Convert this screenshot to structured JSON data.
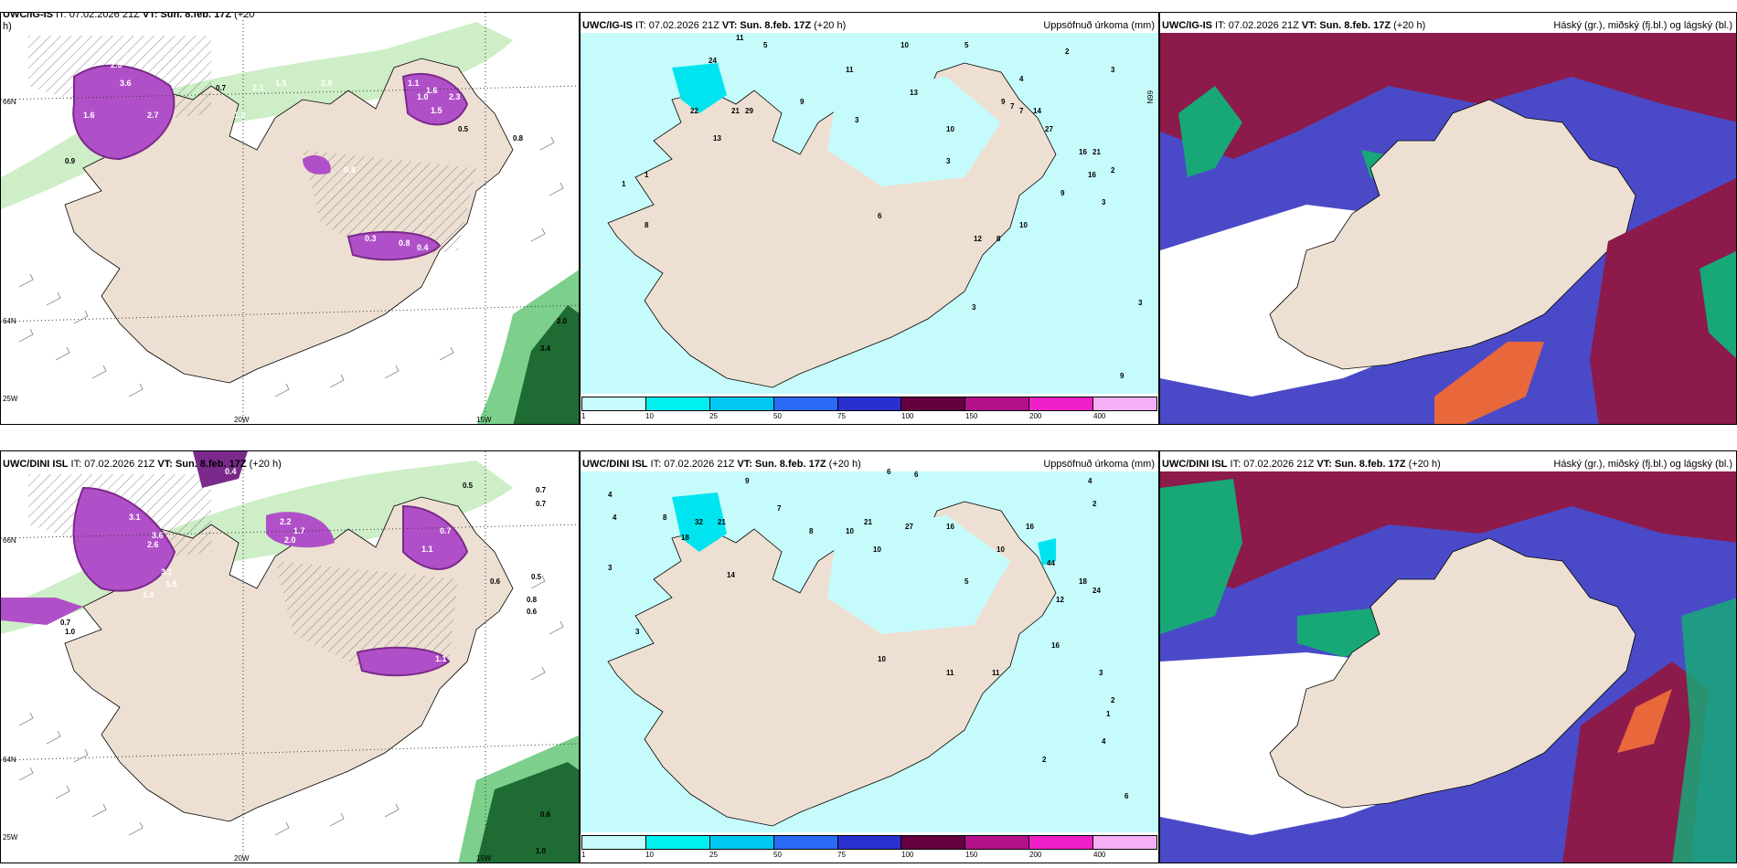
{
  "top": {
    "left": {
      "title_bold": "UWC/IG-IS",
      "title_rest": " IT: 07.02.2026 21Z ",
      "vt_bold": "VT: Sun. 8.feb. 17Z",
      "lead": " (+20",
      "lead_cont": "h)",
      "lat_labels": [
        "66N",
        "64N",
        "25W"
      ],
      "lon_labels": [
        "20W",
        "15W"
      ],
      "precip_labels": [
        "2.6",
        "3.6",
        "1.6",
        "2.7",
        "1.2",
        "2.6",
        "1.5",
        "2.1",
        "0.7",
        "1.1",
        "1.6",
        "1.0",
        "2.3",
        "1.5",
        "0.4",
        "0.8",
        "0.3",
        "0.8",
        "0.4",
        "2.0",
        "3.4",
        "0.9",
        "0.5"
      ]
    },
    "middle": {
      "title_bold": "UWC/IG-IS",
      "title_rest": " IT: 07.02.2026 21Z ",
      "vt_bold": "VT: Sun. 8.feb. 17Z",
      "lead": " (+20 h)",
      "right_label": "Uppsöfnuð úrkoma (mm)",
      "lat_labels": [
        "66N"
      ],
      "values": [
        "11",
        "5",
        "10",
        "5",
        "2",
        "3",
        "24",
        "22",
        "21",
        "29",
        "13",
        "11",
        "13",
        "9",
        "10",
        "3",
        "4",
        "9",
        "7",
        "7",
        "14",
        "27",
        "16",
        "21",
        "16",
        "3",
        "6",
        "12",
        "10",
        "8",
        "9",
        "3",
        "2",
        "1",
        "1",
        "8",
        "3",
        "3",
        "9"
      ],
      "colorbar": {
        "colors": [
          "#c6fbfb",
          "#00f0f0",
          "#00c8f0",
          "#2a6af5",
          "#2a30d0",
          "#640040",
          "#b4108c",
          "#f020c8",
          "#f5b0f5"
        ],
        "ticks": [
          "1",
          "10",
          "25",
          "50",
          "75",
          "100",
          "150",
          "200",
          "400"
        ]
      }
    },
    "right": {
      "title_bold": "UWC/IG-IS",
      "title_rest": " IT: 07.02.2026 21Z ",
      "vt_bold": "VT: Sun. 8.feb. 17Z",
      "lead": " (+20 h)",
      "right_label": "Háský (gr.), miðský (fj.bl.) og lágský (bl.)"
    }
  },
  "bottom": {
    "left": {
      "title_bold": "UWC/DINI ISL",
      "title_rest": " IT: 07.02.2026 21Z ",
      "vt_bold": "VT: Sun. 8.feb. 17Z",
      "lead": " (+20 h)",
      "lat_labels": [
        "66N",
        "64N",
        "25W"
      ],
      "lon_labels": [
        "20W",
        "15W"
      ],
      "precip_labels": [
        "0.4",
        "0.4",
        "3.1",
        "3.6",
        "2.6",
        "3.1",
        "1.8",
        "1.0",
        "0.6",
        "2.2",
        "1.7",
        "2.0",
        "1.1",
        "0.7",
        "0.5",
        "0.7",
        "0.7",
        "0.8",
        "0.6",
        "0.6",
        "1.1",
        "0.5",
        "1.0",
        "0.7",
        "0.6",
        "1.0"
      ]
    },
    "middle": {
      "title_bold": "UWC/DINI ISL",
      "title_rest": " IT: 07.02.2026 21Z ",
      "vt_bold": "VT: Sun. 8.feb. 17Z",
      "lead": " (+20 h)",
      "right_label": "Uppsöfnuð úrkoma (mm)",
      "lat_labels": [
        "66N"
      ],
      "values": [
        "9",
        "6",
        "6",
        "4",
        "2",
        "4",
        "7",
        "8",
        "32",
        "21",
        "18",
        "14",
        "8",
        "10",
        "10",
        "21",
        "27",
        "16",
        "16",
        "10",
        "44",
        "18",
        "24",
        "12",
        "16",
        "5",
        "10",
        "11",
        "11",
        "3",
        "2",
        "4",
        "6",
        "2",
        "3",
        "1",
        "3",
        "4"
      ],
      "colorbar": {
        "colors": [
          "#c6fbfb",
          "#00f0f0",
          "#00c8f0",
          "#2a6af5",
          "#2a30d0",
          "#640040",
          "#b4108c",
          "#f020c8",
          "#f5b0f5"
        ],
        "ticks": [
          "1",
          "10",
          "25",
          "50",
          "75",
          "100",
          "150",
          "200",
          "400"
        ]
      }
    },
    "right": {
      "title_bold": "UWC/DINI ISL",
      "title_rest": " IT: 07.02.2026 21Z ",
      "vt_bold": "VT: Sun. 8.feb. 17Z",
      "lead": " (+20 h)",
      "right_label": "Háský (gr.), miðský (fj.bl.) og lágský (bl.)"
    }
  },
  "colors": {
    "land": "#ede0d2",
    "sea_precip_light": "#c6fbfb",
    "precip_cyan": "#00e4f0",
    "green_light": "#c8ecc0",
    "green_mid": "#7cd08c",
    "green_dark": "#1e6b34",
    "purple_precip": "#b050c8",
    "purple_dark": "#7a2a8a",
    "high_cloud": "#18a878",
    "mid_cloud": "#8c1a4a",
    "low_cloud": "#4a4ac8",
    "orange_cloud": "#e8683c"
  }
}
